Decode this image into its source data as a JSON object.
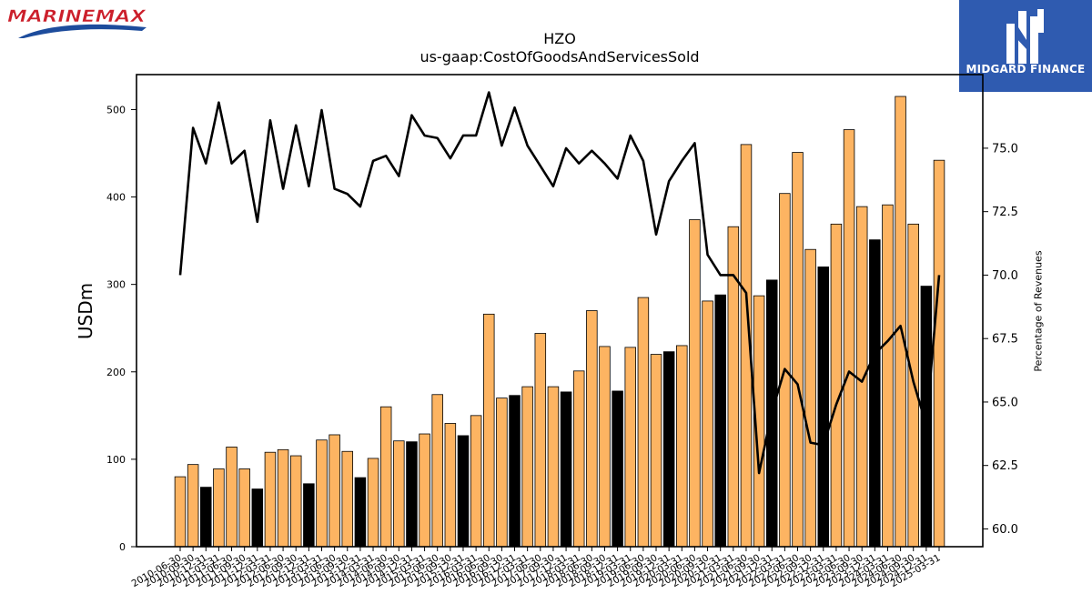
{
  "brand_left": {
    "name": "MarineMax",
    "text": "MARINEMAX",
    "colors": {
      "primary": "#cc1f2b",
      "secondary": "#1d4c9c"
    }
  },
  "brand_right": {
    "name": "Midgard Finance",
    "text": "MIDGARD FINANCE",
    "colors": {
      "background": "#2f5bb0",
      "text": "#ffffff"
    }
  },
  "chart_data": {
    "type": "bar",
    "title": "HZO",
    "subtitle": "us-gaap:CostOfGoodsAndServicesSold",
    "ylabel": "USDm",
    "y2label": "Percentage of Revenues",
    "ylim": [
      0,
      540
    ],
    "y2lim": [
      59.3,
      77.9
    ],
    "yticks": [
      0,
      100,
      200,
      300,
      400,
      500
    ],
    "y2ticks": [
      60.0,
      62.5,
      65.0,
      67.5,
      70.0,
      72.5,
      75.0
    ],
    "y2tick_labels": [
      "60.0",
      "62.5",
      "65.0",
      "67.5",
      "70.0",
      "72.5",
      "75.0"
    ],
    "bar_colors": {
      "quarter": "#fdb462",
      "fiscal_year_end": "#000000"
    },
    "line_color": "#000000",
    "categories": [
      "2010-06-30",
      "2010-09-30",
      "2010-12-31",
      "2011-03-31",
      "2011-06-30",
      "2011-09-30",
      "2011-12-31",
      "2012-03-31",
      "2012-06-30",
      "2012-09-30",
      "2012-12-31",
      "2013-03-31",
      "2013-06-30",
      "2013-09-30",
      "2013-12-31",
      "2014-03-31",
      "2014-06-30",
      "2014-09-30",
      "2014-12-31",
      "2015-03-31",
      "2015-06-30",
      "2015-09-30",
      "2015-12-31",
      "2016-03-31",
      "2016-06-30",
      "2016-09-30",
      "2016-12-31",
      "2017-03-31",
      "2017-06-30",
      "2017-09-30",
      "2017-12-31",
      "2018-03-31",
      "2018-06-30",
      "2018-09-30",
      "2018-12-31",
      "2019-03-31",
      "2019-06-30",
      "2019-09-30",
      "2019-12-31",
      "2020-03-31",
      "2020-06-30",
      "2020-09-30",
      "2020-12-31",
      "2021-03-31",
      "2021-06-30",
      "2021-09-30",
      "2021-12-31",
      "2022-03-31",
      "2022-06-30",
      "2022-09-30",
      "2022-12-31",
      "2023-03-31",
      "2023-06-30",
      "2023-09-30",
      "2023-12-31",
      "2024-03-31",
      "2024-06-30",
      "2024-09-30",
      "2024-12-31",
      "2025-03-31"
    ],
    "values": [
      80,
      94,
      68,
      89,
      114,
      89,
      66,
      108,
      111,
      104,
      72,
      122,
      128,
      109,
      79,
      101,
      160,
      121,
      120,
      129,
      174,
      141,
      127,
      150,
      266,
      170,
      173,
      183,
      244,
      183,
      177,
      201,
      270,
      229,
      178,
      228,
      285,
      220,
      223,
      230,
      374,
      281,
      288,
      366,
      460,
      287,
      305,
      404,
      451,
      340,
      320,
      369,
      477,
      389,
      351,
      391,
      515,
      369,
      298,
      442
    ],
    "fiscal_year_end": [
      false,
      false,
      true,
      false,
      false,
      false,
      true,
      false,
      false,
      false,
      true,
      false,
      false,
      false,
      true,
      false,
      false,
      false,
      true,
      false,
      false,
      false,
      true,
      false,
      false,
      false,
      true,
      false,
      false,
      false,
      true,
      false,
      false,
      false,
      true,
      false,
      false,
      false,
      true,
      false,
      false,
      false,
      true,
      false,
      false,
      false,
      true,
      false,
      false,
      false,
      true,
      false,
      false,
      false,
      true,
      false,
      false,
      false,
      true,
      false
    ],
    "series": [
      {
        "values": [
          70.0,
          75.8,
          74.4,
          76.8,
          74.4,
          74.9,
          72.1,
          76.1,
          73.4,
          75.9,
          73.5,
          76.5,
          73.4,
          73.2,
          72.7,
          74.5,
          74.7,
          73.9,
          76.3,
          75.5,
          75.4,
          74.6,
          75.5,
          75.5,
          77.2,
          75.1,
          76.6,
          75.1,
          74.3,
          73.5,
          75.0,
          74.4,
          74.9,
          74.4,
          73.8,
          75.5,
          74.5,
          71.6,
          73.7,
          74.5,
          75.2,
          70.8,
          70.0,
          70.0,
          69.3,
          62.2,
          64.6,
          66.3,
          65.7,
          63.4,
          63.3,
          64.9,
          66.2,
          65.8,
          66.9,
          67.4,
          68.0,
          65.8,
          64.1,
          70.0
        ]
      }
    ]
  }
}
